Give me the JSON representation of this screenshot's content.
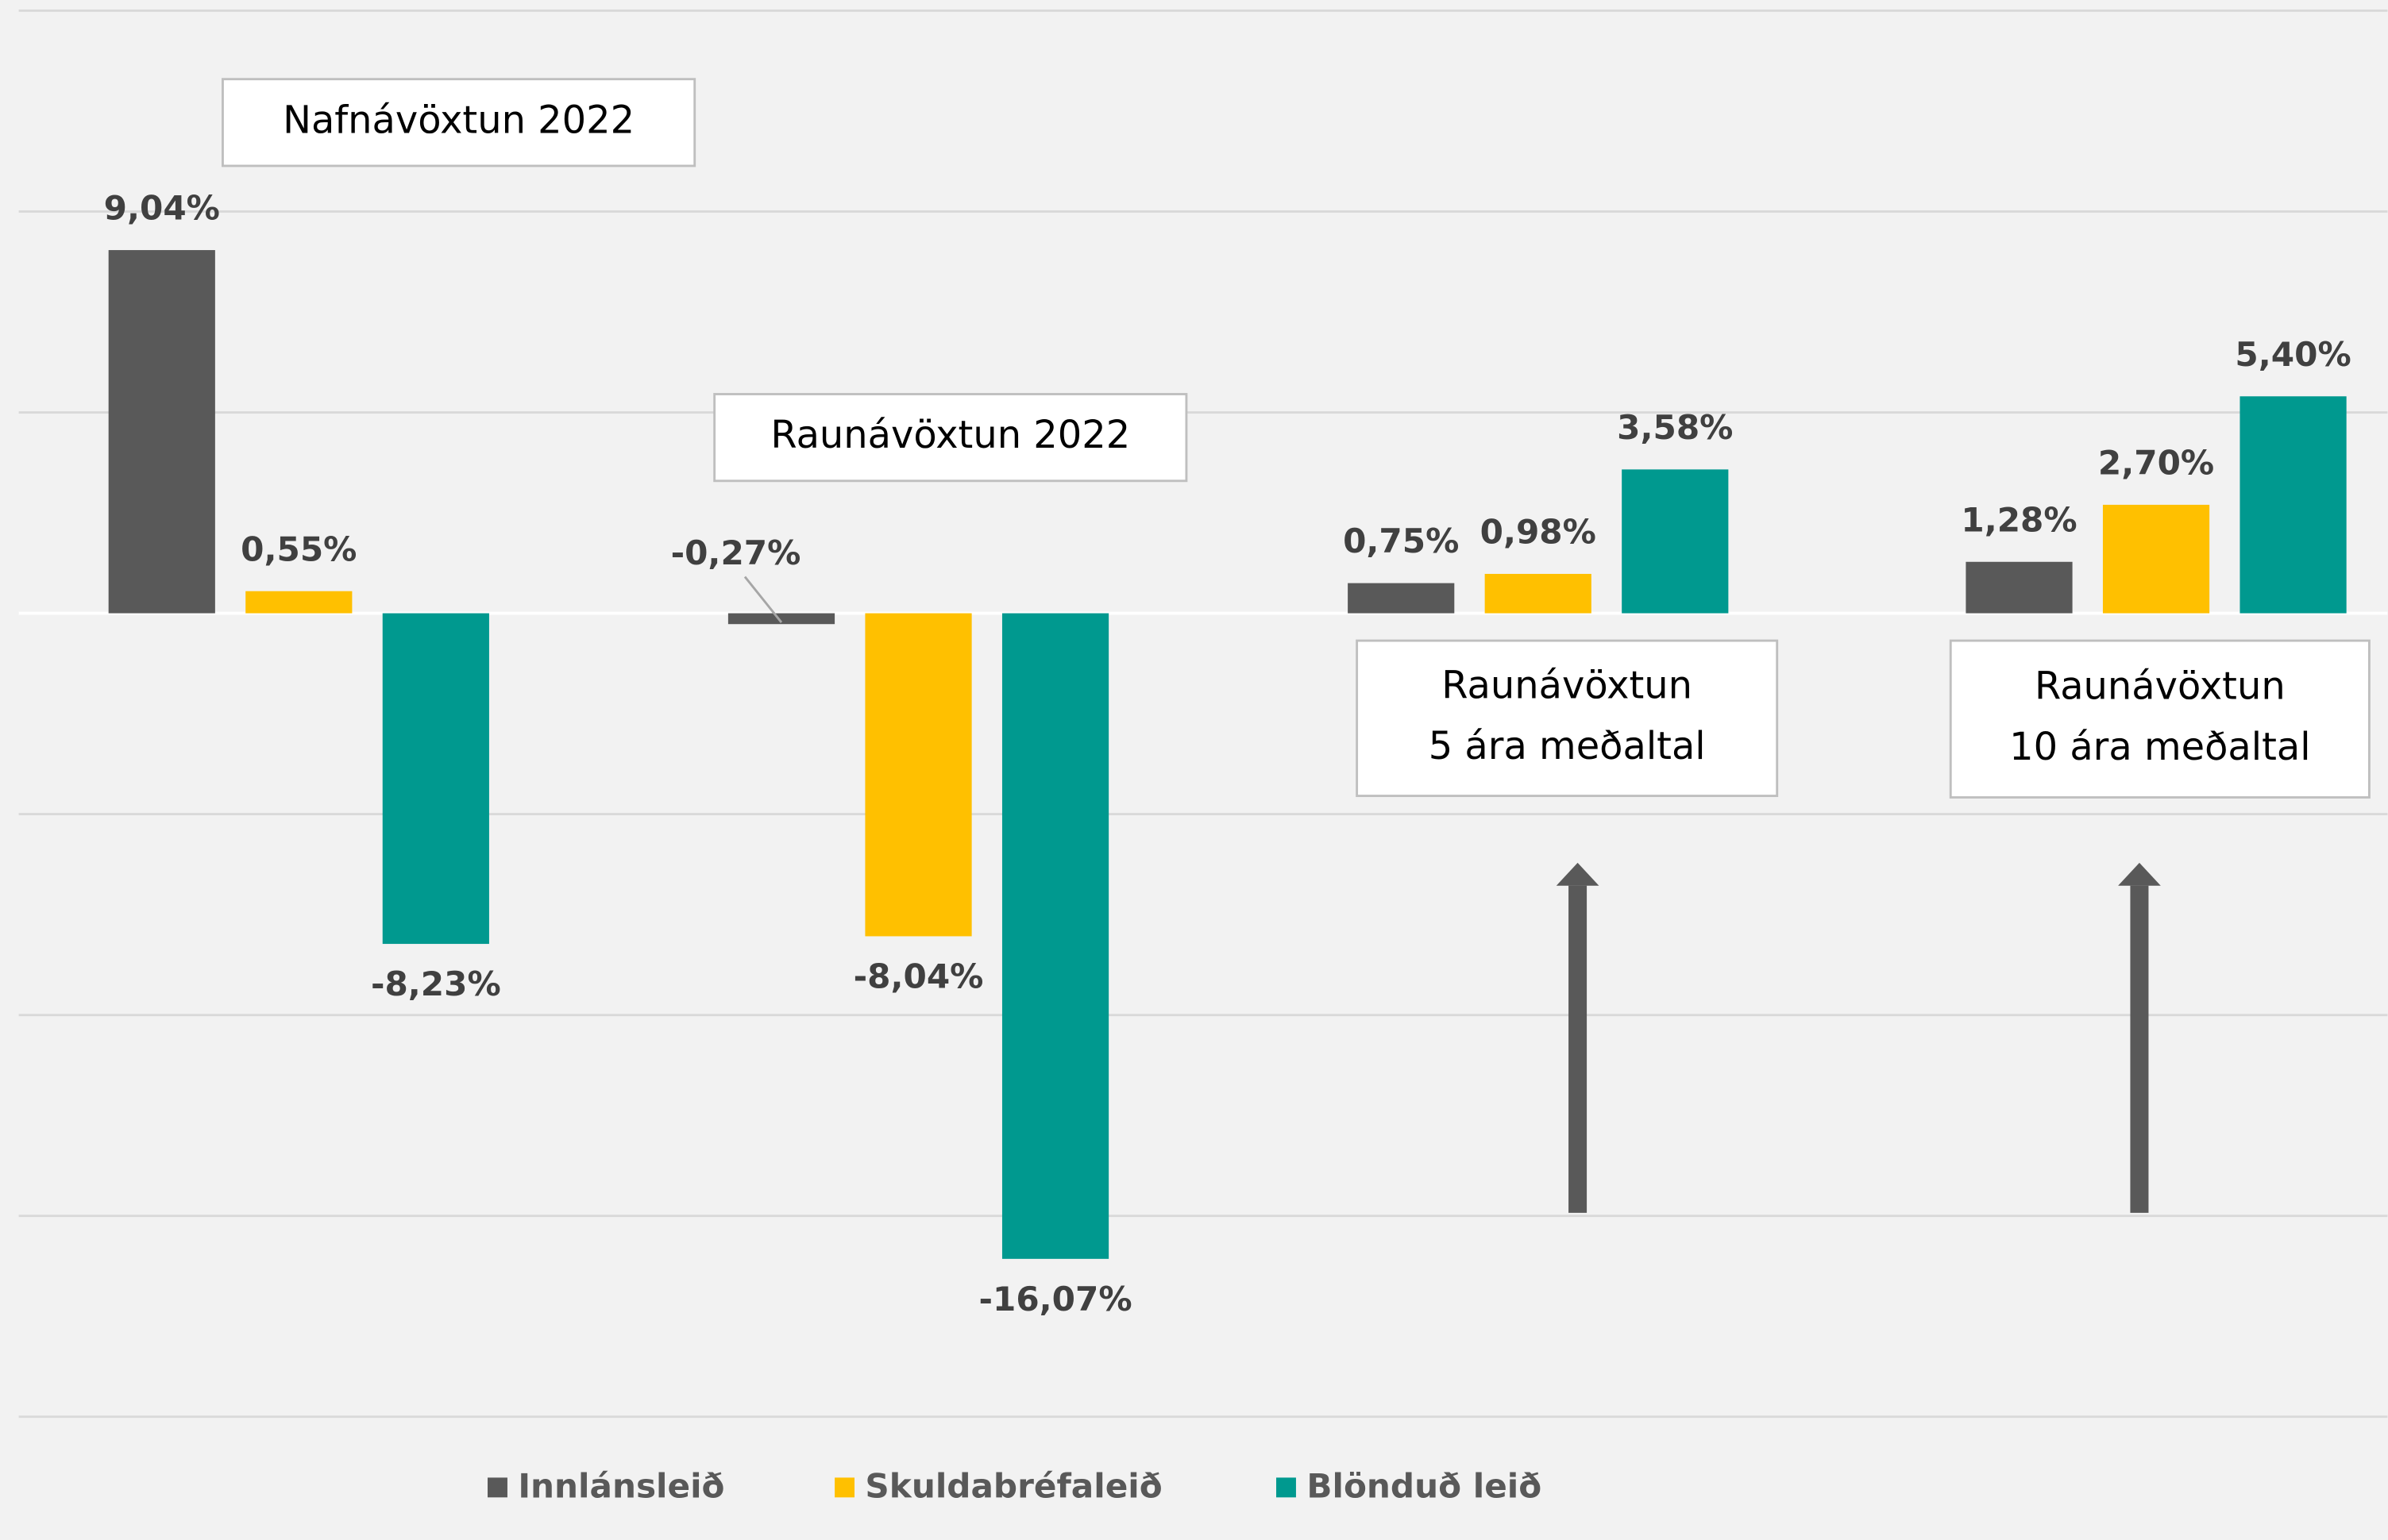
{
  "chart_data": {
    "type": "bar",
    "categories": [
      null,
      null,
      null,
      null
    ],
    "annotations": [
      {
        "lines": [
          "Nafnávöxtun 2022"
        ]
      },
      {
        "lines": [
          "Raunávöxtun 2022"
        ]
      },
      {
        "lines": [
          "Raunávöxtun",
          "5 ára meðaltal"
        ]
      },
      {
        "lines": [
          "Raunávöxtun",
          "10 ára meðaltal"
        ]
      }
    ],
    "series": [
      {
        "name": "Innlánsleið",
        "color": "#595959",
        "values": [
          9.04,
          -0.27,
          0.75,
          1.28
        ],
        "value_labels": [
          "9,04%",
          "-0,27%",
          "0,75%",
          "1,28%"
        ]
      },
      {
        "name": "Skuldabréfaleið",
        "color": "#ffc000",
        "values": [
          0.55,
          -8.04,
          0.98,
          2.7
        ],
        "value_labels": [
          "0,55%",
          "-8,04%",
          "0,98%",
          "2,70%"
        ]
      },
      {
        "name": "Blönduð leið",
        "color": "#00998f",
        "values": [
          -8.23,
          -16.07,
          3.58,
          5.4
        ],
        "value_labels": [
          "-8,23%",
          "-16,07%",
          "3,58%",
          "5,40%"
        ]
      }
    ],
    "ylim": [
      -20,
      15
    ],
    "yticks": [
      -20,
      -15,
      -10,
      -5,
      0,
      5,
      10,
      15
    ],
    "grid": true,
    "legend": "bottom"
  }
}
